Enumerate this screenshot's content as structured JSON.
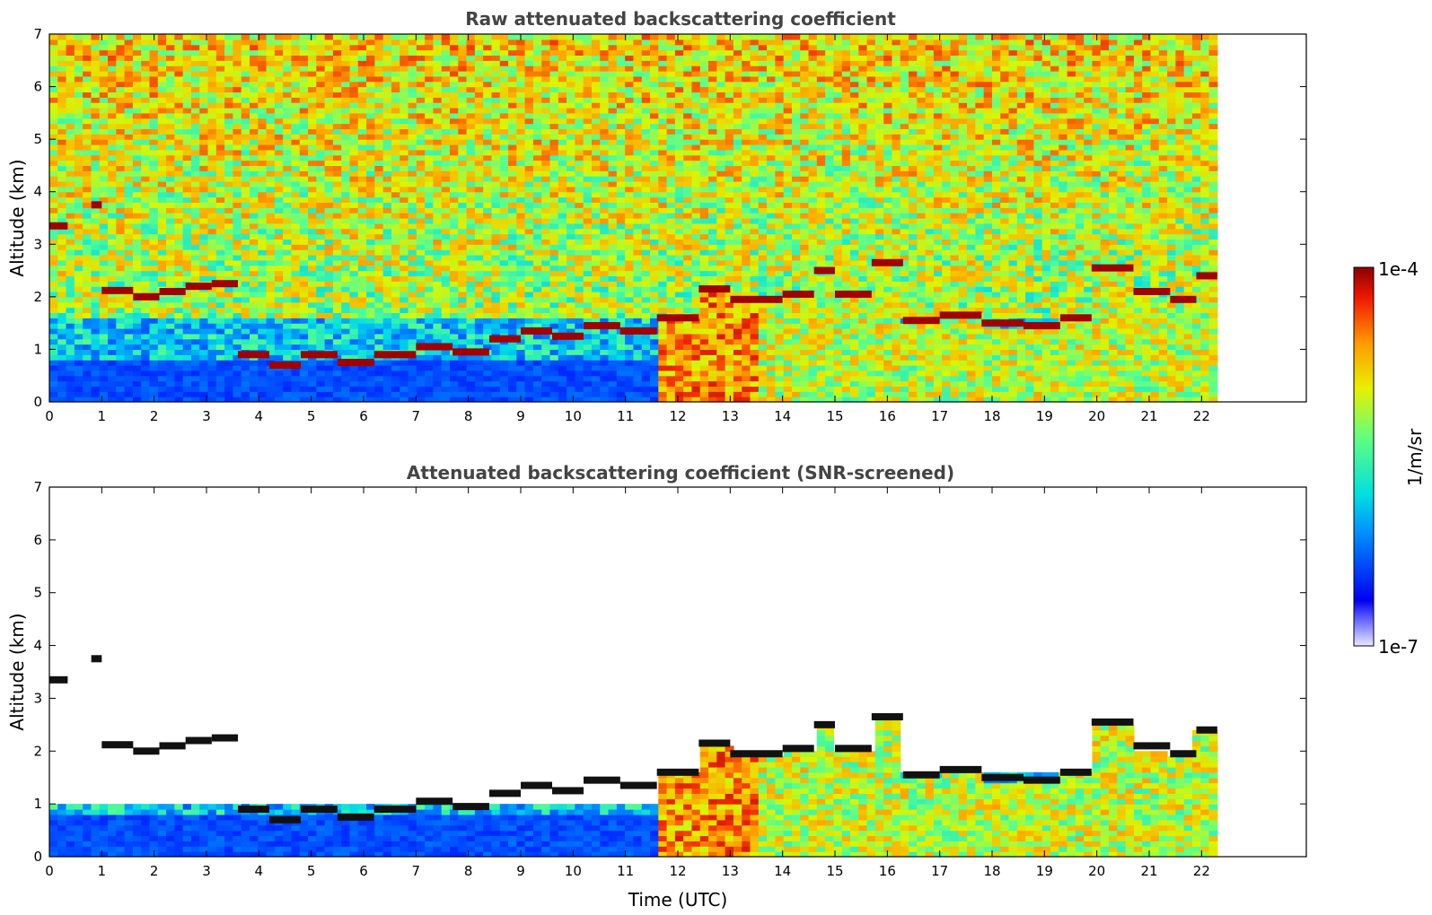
{
  "chart_data": [
    {
      "type": "heatmap",
      "title": "Raw attenuated backscattering coefficient",
      "xlabel": "",
      "ylabel": "Altitude (km)",
      "xlim": [
        0,
        24
      ],
      "ylim": [
        0,
        7
      ],
      "x_ticks": [
        "0",
        "1",
        "2",
        "3",
        "4",
        "5",
        "6",
        "7",
        "8",
        "9",
        "10",
        "11",
        "12",
        "13",
        "14",
        "15",
        "16",
        "17",
        "18",
        "19",
        "20",
        "21",
        "22"
      ],
      "y_ticks": [
        "0",
        "1",
        "2",
        "3",
        "4",
        "5",
        "6",
        "7"
      ],
      "data_end_hour": 22.3,
      "screened": false,
      "cloud_layers": [
        {
          "start": 0.0,
          "end": 0.35,
          "alt": 3.35
        },
        {
          "start": 0.8,
          "end": 1.0,
          "alt": 3.75
        },
        {
          "start": 1.0,
          "end": 1.6,
          "alt": 2.12
        },
        {
          "start": 1.6,
          "end": 2.1,
          "alt": 2.0
        },
        {
          "start": 2.1,
          "end": 2.6,
          "alt": 2.1
        },
        {
          "start": 2.6,
          "end": 3.1,
          "alt": 2.2
        },
        {
          "start": 3.1,
          "end": 3.6,
          "alt": 2.25
        },
        {
          "start": 3.6,
          "end": 4.2,
          "alt": 0.9
        },
        {
          "start": 4.2,
          "end": 4.8,
          "alt": 0.7
        },
        {
          "start": 4.8,
          "end": 5.5,
          "alt": 0.9
        },
        {
          "start": 5.5,
          "end": 6.2,
          "alt": 0.75
        },
        {
          "start": 6.2,
          "end": 7.0,
          "alt": 0.9
        },
        {
          "start": 7.0,
          "end": 7.7,
          "alt": 1.05
        },
        {
          "start": 7.7,
          "end": 8.4,
          "alt": 0.95
        },
        {
          "start": 8.4,
          "end": 9.0,
          "alt": 1.2
        },
        {
          "start": 9.0,
          "end": 9.6,
          "alt": 1.35
        },
        {
          "start": 9.6,
          "end": 10.2,
          "alt": 1.25
        },
        {
          "start": 10.2,
          "end": 10.9,
          "alt": 1.45
        },
        {
          "start": 10.9,
          "end": 11.6,
          "alt": 1.35
        },
        {
          "start": 11.6,
          "end": 12.4,
          "alt": 1.6
        },
        {
          "start": 12.4,
          "end": 13.0,
          "alt": 2.15
        },
        {
          "start": 13.0,
          "end": 14.0,
          "alt": 1.95
        },
        {
          "start": 14.0,
          "end": 14.6,
          "alt": 2.05
        },
        {
          "start": 14.6,
          "end": 15.0,
          "alt": 2.5
        },
        {
          "start": 15.0,
          "end": 15.7,
          "alt": 2.05
        },
        {
          "start": 15.7,
          "end": 16.3,
          "alt": 2.65
        },
        {
          "start": 16.3,
          "end": 17.0,
          "alt": 1.55
        },
        {
          "start": 17.0,
          "end": 17.8,
          "alt": 1.65
        },
        {
          "start": 17.8,
          "end": 18.6,
          "alt": 1.5
        },
        {
          "start": 18.6,
          "end": 19.3,
          "alt": 1.45
        },
        {
          "start": 19.3,
          "end": 19.9,
          "alt": 1.6
        },
        {
          "start": 19.9,
          "end": 20.7,
          "alt": 2.55
        },
        {
          "start": 20.7,
          "end": 21.4,
          "alt": 2.1
        },
        {
          "start": 21.4,
          "end": 21.9,
          "alt": 1.95
        },
        {
          "start": 21.9,
          "end": 22.3,
          "alt": 2.4
        }
      ]
    },
    {
      "type": "heatmap",
      "title": "Attenuated backscattering coefficient (SNR-screened)",
      "xlabel": "Time (UTC)",
      "ylabel": "Altitude (km)",
      "xlim": [
        0,
        24
      ],
      "ylim": [
        0,
        7
      ],
      "x_ticks": [
        "0",
        "1",
        "2",
        "3",
        "4",
        "5",
        "6",
        "7",
        "8",
        "9",
        "10",
        "11",
        "12",
        "13",
        "14",
        "15",
        "16",
        "17",
        "18",
        "19",
        "20",
        "21",
        "22"
      ],
      "y_ticks": [
        "0",
        "1",
        "2",
        "3",
        "4",
        "5",
        "6",
        "7"
      ],
      "data_end_hour": 22.3,
      "screened": true
    }
  ],
  "colorbar": {
    "label": "1/m/sr",
    "max_label": "1e-4",
    "min_label": "1e-7",
    "colormap": "jet"
  }
}
